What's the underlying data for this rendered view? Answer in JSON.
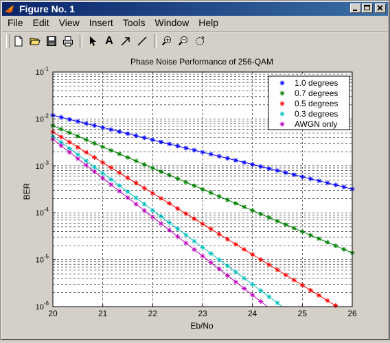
{
  "window": {
    "title": "Figure No. 1",
    "buttons": {
      "minimize": "_",
      "maximize": "□",
      "close": "✕"
    }
  },
  "menu": [
    "File",
    "Edit",
    "View",
    "Insert",
    "Tools",
    "Window",
    "Help"
  ],
  "toolbar": {
    "tools": [
      "new-file-icon",
      "open-folder-icon",
      "save-icon",
      "print-icon",
      "select-arrow-icon",
      "text-tool-icon",
      "arrow-tool-icon",
      "line-tool-icon",
      "zoom-in-icon",
      "zoom-out-icon",
      "rotate-icon"
    ],
    "text_tool_glyph": "A"
  },
  "chart_data": {
    "type": "line",
    "title": "Phase Noise Performance of 256-QAM",
    "xlabel": "Eb/No",
    "ylabel": "BER",
    "xlim": [
      20,
      26
    ],
    "ylim": [
      1e-06,
      0.1
    ],
    "yscale": "log",
    "grid": true,
    "legend_position": "top-right",
    "x_ticks": [
      "20",
      "21",
      "22",
      "23",
      "24",
      "25",
      "26"
    ],
    "y_ticks": [
      {
        "base": "10",
        "exp": "-1",
        "value": 0.1
      },
      {
        "base": "10",
        "exp": "-2",
        "value": 0.01
      },
      {
        "base": "10",
        "exp": "-3",
        "value": 0.001
      },
      {
        "base": "10",
        "exp": "-4",
        "value": 0.0001
      },
      {
        "base": "10",
        "exp": "-5",
        "value": 1e-05
      },
      {
        "base": "10",
        "exp": "-6",
        "value": 1e-06
      }
    ],
    "series": [
      {
        "name": "1.0 degrees",
        "color": "#0000ff",
        "x": [
          20,
          26
        ],
        "y": [
          0.012,
          0.00032
        ]
      },
      {
        "name": "0.7 degrees",
        "color": "#008000",
        "x": [
          20,
          26
        ],
        "y": [
          0.0072,
          1.4e-05
        ]
      },
      {
        "name": "0.5 degrees",
        "color": "#ff0000",
        "x": [
          20,
          25.7
        ],
        "y": [
          0.0053,
          1e-06
        ]
      },
      {
        "name": "0.3 degrees",
        "color": "#00bfbf",
        "x": [
          20,
          24.6
        ],
        "y": [
          0.0043,
          1e-06
        ]
      },
      {
        "name": "AWGN only",
        "color": "#bf00bf",
        "x": [
          20,
          24.3
        ],
        "y": [
          0.0037,
          1e-06
        ]
      }
    ]
  }
}
